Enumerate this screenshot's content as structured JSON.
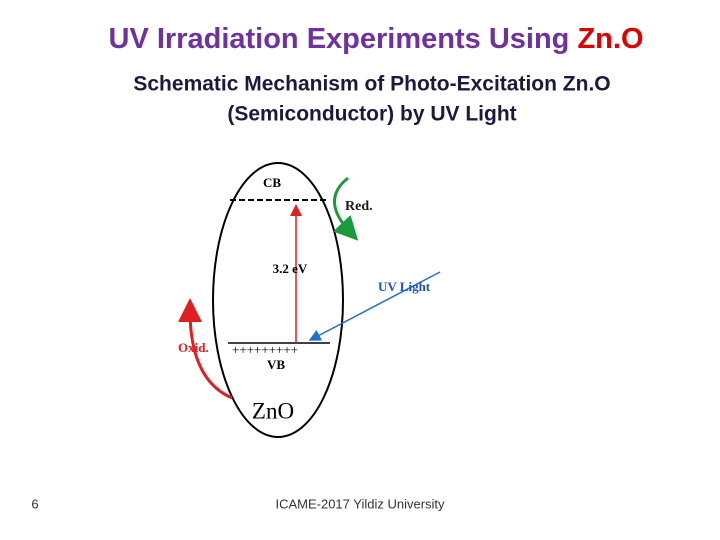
{
  "header": {
    "title": "UV Irradiation Experiments Using ",
    "title_highlight": "Zn.O",
    "subtitle_line1": "Schematic Mechanism of Photo-Excitation Zn.O",
    "subtitle_line2": "(Semiconductor)  by UV Light"
  },
  "diagram": {
    "cb": "CB",
    "red": "Red.",
    "gap": "3.2 eV",
    "uv": "UV Light",
    "oxid": "Oxid.",
    "holes": "+++++++++",
    "vb": "VB",
    "material": "ZnO"
  },
  "footer": {
    "page": "6",
    "text": "ICAME-2017 Yildiz University"
  }
}
